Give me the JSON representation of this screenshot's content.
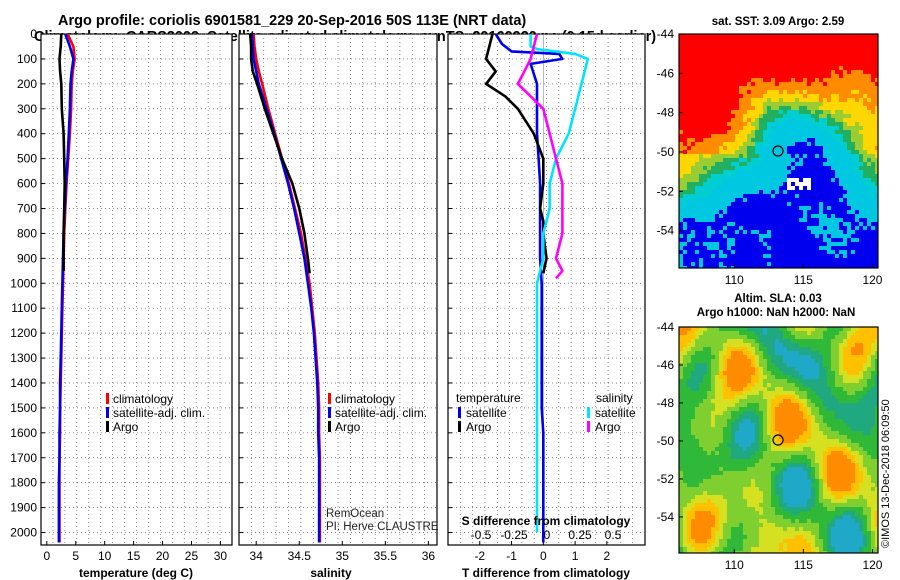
{
  "header": {
    "line1": "Argo profile: coriolis 6901581_229 20-Sep-2016 50S 113E (NRT data)",
    "line2": "Climatology: CARS2009. Satellite-adjusted climatology: synTS_20160920.nc (0.15d earlier)"
  },
  "colors": {
    "climatology": "#ff0000",
    "satellite": "#0000ee",
    "argo": "#000000",
    "sat_salinity": "#00e5ff",
    "clim_salinity": "#ff00ff"
  },
  "depth_axis": {
    "ylim": [
      0,
      2050
    ],
    "ticks": [
      0,
      100,
      200,
      300,
      400,
      500,
      600,
      700,
      800,
      900,
      1000,
      1100,
      1200,
      1300,
      1400,
      1500,
      1600,
      1700,
      1800,
      1900,
      2000
    ]
  },
  "chart_data": [
    {
      "type": "line",
      "title": "",
      "xlabel": "temperature (deg C)",
      "ylabel": "depth",
      "xlim": [
        -1,
        32
      ],
      "ylim": [
        0,
        2050
      ],
      "xticks": [
        0,
        5,
        10,
        15,
        20,
        25,
        30
      ],
      "series": [
        {
          "name": "climatology",
          "color": "#ff0000",
          "x": [
            3.6,
            4.6,
            4.8,
            4.5,
            4.3,
            4.2,
            4.0,
            3.7,
            3.4,
            3.2,
            3.0,
            2.9,
            2.8,
            2.7,
            2.6,
            2.5,
            2.4,
            2.3,
            2.3,
            2.2,
            2.2,
            2.2,
            2.2
          ],
          "y": [
            0,
            50,
            100,
            150,
            200,
            300,
            400,
            500,
            600,
            700,
            800,
            900,
            1000,
            1100,
            1200,
            1300,
            1400,
            1500,
            1600,
            1700,
            1800,
            1900,
            2040
          ]
        },
        {
          "name": "satellite-adj. clim.",
          "color": "#0000ee",
          "x": [
            3.2,
            4.0,
            4.6,
            4.3,
            4.1,
            4.0,
            3.8,
            3.6,
            3.3,
            3.1,
            2.9,
            2.8,
            2.7,
            2.6,
            2.5,
            2.4,
            2.3,
            2.3,
            2.2,
            2.2,
            2.1,
            2.1,
            2.1
          ],
          "y": [
            0,
            50,
            100,
            150,
            200,
            300,
            400,
            500,
            600,
            700,
            800,
            900,
            1000,
            1100,
            1200,
            1300,
            1400,
            1500,
            1600,
            1700,
            1800,
            1900,
            2040
          ]
        },
        {
          "name": "Argo",
          "color": "#000000",
          "x": [
            2.5,
            2.4,
            2.2,
            2.3,
            2.5,
            2.6,
            2.9,
            3.0,
            3.1,
            3.0,
            2.9,
            2.9
          ],
          "y": [
            0,
            50,
            100,
            150,
            200,
            300,
            400,
            500,
            600,
            700,
            800,
            950
          ]
        }
      ],
      "legend": [
        "climatology",
        "satellite-adj. clim.",
        "Argo"
      ],
      "legend_position": "bottom-right"
    },
    {
      "type": "line",
      "title": "",
      "xlabel": "salinity",
      "ylabel": "depth",
      "xlim": [
        33.8,
        36.1
      ],
      "ylim": [
        0,
        2050
      ],
      "xticks": [
        34,
        34.5,
        35,
        35.5,
        36
      ],
      "tick_labels": [
        "34",
        "34.5",
        "35",
        "35.5",
        "36"
      ],
      "annotations": [
        "RemOcean",
        "PI: Herve CLAUSTRE"
      ],
      "series": [
        {
          "name": "climatology",
          "color": "#ff0000",
          "x": [
            33.97,
            33.98,
            34.0,
            34.03,
            34.07,
            34.14,
            34.22,
            34.3,
            34.38,
            34.45,
            34.52,
            34.57,
            34.62,
            34.65,
            34.68,
            34.7,
            34.72,
            34.73,
            34.73,
            34.74,
            34.74,
            34.74,
            34.74
          ],
          "y": [
            0,
            50,
            100,
            150,
            200,
            300,
            400,
            500,
            600,
            700,
            800,
            900,
            1000,
            1100,
            1200,
            1300,
            1400,
            1500,
            1600,
            1700,
            1800,
            1900,
            2040
          ]
        },
        {
          "name": "satellite-adj. clim.",
          "color": "#0000ee",
          "x": [
            33.95,
            33.96,
            33.97,
            34.0,
            34.03,
            34.12,
            34.21,
            34.29,
            34.37,
            34.44,
            34.5,
            34.56,
            34.6,
            34.64,
            34.67,
            34.69,
            34.71,
            34.72,
            34.72,
            34.73,
            34.73,
            34.73,
            34.73
          ],
          "y": [
            0,
            50,
            100,
            150,
            200,
            300,
            400,
            500,
            600,
            700,
            800,
            900,
            1000,
            1100,
            1200,
            1300,
            1400,
            1500,
            1600,
            1700,
            1800,
            1900,
            2040
          ]
        },
        {
          "name": "Argo",
          "color": "#000000",
          "x": [
            33.93,
            33.94,
            33.94,
            33.96,
            34.01,
            34.1,
            34.2,
            34.3,
            34.42,
            34.5,
            34.56,
            34.6,
            34.62
          ],
          "y": [
            0,
            50,
            100,
            150,
            200,
            300,
            400,
            500,
            600,
            700,
            800,
            900,
            960
          ]
        }
      ],
      "legend": [
        "climatology",
        "satellite-adj. clim.",
        "Argo"
      ],
      "legend_position": "bottom-right"
    },
    {
      "type": "line",
      "title": "",
      "xlabel": "T difference from climatology",
      "ylabel": "depth",
      "xlim": [
        -3,
        3.2
      ],
      "ylim": [
        0,
        2050
      ],
      "xticks": [
        -2,
        -1,
        0,
        1,
        2
      ],
      "secondary_axis_label": "S difference from climatology",
      "secondary_ticks": [
        "-0.5",
        "-0.25",
        "0",
        "0.25",
        "0.5"
      ],
      "legend_groups": [
        {
          "title": "temperature",
          "entries": [
            "satellite",
            "Argo"
          ]
        },
        {
          "title": "salinity",
          "entries": [
            "satellite",
            "Argo"
          ]
        }
      ],
      "series": [
        {
          "name": "temperature satellite",
          "color": "#0000ee",
          "x": [
            -1.5,
            -1.3,
            -1.0,
            0.5,
            0.6,
            -0.4,
            -0.2,
            -0.2,
            -0.2,
            -0.15,
            -0.1,
            -0.1,
            -0.1,
            -0.1,
            -0.05,
            -0.05,
            -0.05,
            -0.05,
            0,
            0,
            0,
            0,
            0,
            0
          ],
          "y": [
            0,
            40,
            70,
            80,
            100,
            120,
            200,
            300,
            400,
            500,
            600,
            700,
            800,
            900,
            1000,
            1200,
            1400,
            1500,
            1600,
            1700,
            1800,
            1900,
            2000,
            2040
          ]
        },
        {
          "name": "temperature Argo",
          "color": "#000000",
          "x": [
            -1.6,
            -1.7,
            -1.8,
            -1.5,
            -1.8,
            -1.2,
            -0.8,
            -0.3,
            0.0,
            0.0,
            -0.1,
            0.0,
            0.0,
            0.1,
            0.0
          ],
          "y": [
            0,
            50,
            100,
            150,
            200,
            250,
            300,
            400,
            500,
            600,
            700,
            750,
            800,
            900,
            960
          ]
        },
        {
          "name": "salinity satellite",
          "color": "#00e5ff",
          "x": [
            -0.1,
            -0.1,
            -0.05,
            0.25,
            0.35,
            0.3,
            0.25,
            0.2,
            0.1,
            0.05,
            0.05,
            0.0,
            0.0,
            -0.05,
            -0.05,
            -0.05,
            -0.05,
            -0.05,
            -0.05,
            -0.05,
            -0.05,
            -0.05
          ],
          "y": [
            0,
            50,
            60,
            80,
            100,
            200,
            300,
            400,
            500,
            600,
            700,
            800,
            900,
            1000,
            1200,
            1400,
            1500,
            1600,
            1700,
            1800,
            1900,
            2000
          ]
        },
        {
          "name": "salinity Argo",
          "color": "#ff00ff",
          "x": [
            -0.05,
            -0.1,
            -0.15,
            -0.2,
            -0.1,
            0.0,
            0.05,
            0.1,
            0.15,
            0.15,
            0.15,
            0.1,
            0.15,
            0.1
          ],
          "y": [
            0,
            100,
            150,
            200,
            250,
            300,
            400,
            500,
            600,
            700,
            800,
            900,
            950,
            980
          ]
        }
      ],
      "legend_position": "bottom"
    }
  ],
  "maps": [
    {
      "title": "sat. SST: 3.09 Argo: 2.59",
      "lat_ticks": [
        "-44",
        "-46",
        "-48",
        "-50",
        "-52",
        "-54"
      ],
      "lon_ticks": [
        "110",
        "115",
        "120"
      ],
      "marker": "float position 50S 113E"
    },
    {
      "title_line1": "Altim. SLA: 0.03",
      "title_line2": "Argo h1000: NaN h2000: NaN",
      "lat_ticks": [
        "-44",
        "-46",
        "-48",
        "-50",
        "-52",
        "-54"
      ],
      "lon_ticks": [
        "110",
        "115",
        "120"
      ],
      "marker": "float position 50S 113E"
    }
  ],
  "footer": {
    "credit": "©IMOS 13-Dec-2018 06:09:50"
  }
}
